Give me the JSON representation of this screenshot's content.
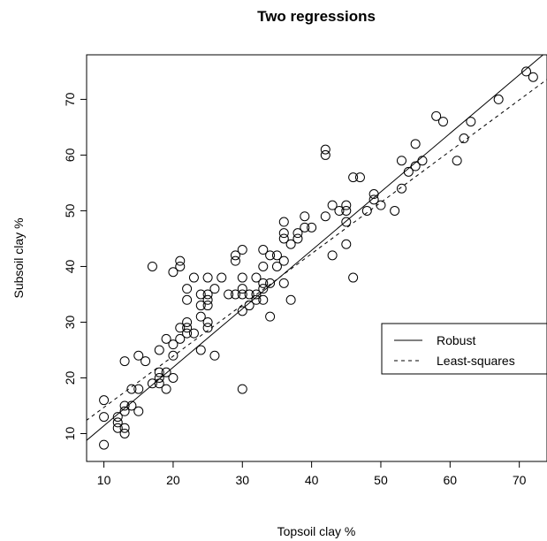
{
  "chart_data": {
    "type": "scatter",
    "title": "Two regressions",
    "xlabel": "Topsoil clay %",
    "ylabel": "Subsoil clay %",
    "xlim": [
      7.5,
      74
    ],
    "ylim": [
      5,
      78
    ],
    "x_ticks": [
      "10",
      "20",
      "30",
      "40",
      "50",
      "60",
      "70"
    ],
    "y_ticks": [
      "10",
      "20",
      "30",
      "40",
      "50",
      "60",
      "70"
    ],
    "grid": false,
    "legend_position": "right",
    "points": [
      [
        10,
        16
      ],
      [
        10,
        13
      ],
      [
        10,
        8
      ],
      [
        12,
        13
      ],
      [
        12,
        12
      ],
      [
        12,
        11
      ],
      [
        13,
        23
      ],
      [
        13,
        15
      ],
      [
        13,
        14
      ],
      [
        13,
        11
      ],
      [
        13,
        10
      ],
      [
        14,
        18
      ],
      [
        14,
        15
      ],
      [
        15,
        24
      ],
      [
        15,
        18
      ],
      [
        15,
        14
      ],
      [
        16,
        23
      ],
      [
        17,
        40
      ],
      [
        17,
        19
      ],
      [
        18,
        25
      ],
      [
        18,
        21
      ],
      [
        18,
        20
      ],
      [
        18,
        19
      ],
      [
        19,
        27
      ],
      [
        19,
        21
      ],
      [
        19,
        18
      ],
      [
        20,
        39
      ],
      [
        20,
        26
      ],
      [
        20,
        24
      ],
      [
        20,
        20
      ],
      [
        21,
        41
      ],
      [
        21,
        40
      ],
      [
        21,
        29
      ],
      [
        21,
        27
      ],
      [
        22,
        36
      ],
      [
        22,
        34
      ],
      [
        22,
        30
      ],
      [
        22,
        29
      ],
      [
        22,
        28
      ],
      [
        23,
        38
      ],
      [
        23,
        28
      ],
      [
        24,
        35
      ],
      [
        24,
        33
      ],
      [
        24,
        31
      ],
      [
        24,
        25
      ],
      [
        25,
        38
      ],
      [
        25,
        35
      ],
      [
        25,
        34
      ],
      [
        25,
        33
      ],
      [
        25,
        30
      ],
      [
        25,
        29
      ],
      [
        26,
        36
      ],
      [
        26,
        24
      ],
      [
        27,
        38
      ],
      [
        28,
        35
      ],
      [
        29,
        42
      ],
      [
        29,
        41
      ],
      [
        29,
        35
      ],
      [
        30,
        43
      ],
      [
        30,
        38
      ],
      [
        30,
        36
      ],
      [
        30,
        35
      ],
      [
        30,
        32
      ],
      [
        30,
        18
      ],
      [
        31,
        35
      ],
      [
        31,
        33
      ],
      [
        32,
        38
      ],
      [
        32,
        35
      ],
      [
        32,
        34
      ],
      [
        33,
        43
      ],
      [
        33,
        40
      ],
      [
        33,
        37
      ],
      [
        33,
        36
      ],
      [
        33,
        34
      ],
      [
        34,
        42
      ],
      [
        34,
        37
      ],
      [
        34,
        31
      ],
      [
        35,
        42
      ],
      [
        35,
        40
      ],
      [
        36,
        48
      ],
      [
        36,
        46
      ],
      [
        36,
        45
      ],
      [
        36,
        41
      ],
      [
        36,
        37
      ],
      [
        37,
        44
      ],
      [
        37,
        34
      ],
      [
        38,
        46
      ],
      [
        38,
        45
      ],
      [
        39,
        49
      ],
      [
        39,
        47
      ],
      [
        40,
        47
      ],
      [
        42,
        61
      ],
      [
        42,
        60
      ],
      [
        42,
        49
      ],
      [
        43,
        51
      ],
      [
        43,
        42
      ],
      [
        44,
        50
      ],
      [
        45,
        51
      ],
      [
        45,
        50
      ],
      [
        45,
        48
      ],
      [
        45,
        44
      ],
      [
        46,
        56
      ],
      [
        46,
        38
      ],
      [
        47,
        56
      ],
      [
        48,
        50
      ],
      [
        49,
        53
      ],
      [
        49,
        52
      ],
      [
        50,
        51
      ],
      [
        52,
        50
      ],
      [
        53,
        59
      ],
      [
        53,
        54
      ],
      [
        54,
        57
      ],
      [
        55,
        62
      ],
      [
        55,
        58
      ],
      [
        56,
        59
      ],
      [
        58,
        67
      ],
      [
        59,
        66
      ],
      [
        61,
        59
      ],
      [
        62,
        63
      ],
      [
        63,
        66
      ],
      [
        67,
        70
      ],
      [
        71,
        75
      ],
      [
        72,
        74
      ]
    ],
    "series": [
      {
        "name": "Robust",
        "line_style": "solid",
        "intercept": 0.9,
        "slope": 1.05
      },
      {
        "name": "Least-squares",
        "line_style": "dashed",
        "intercept": 5.5,
        "slope": 0.92
      }
    ],
    "colors": {
      "ink": "#000000",
      "background": "#ffffff"
    }
  }
}
